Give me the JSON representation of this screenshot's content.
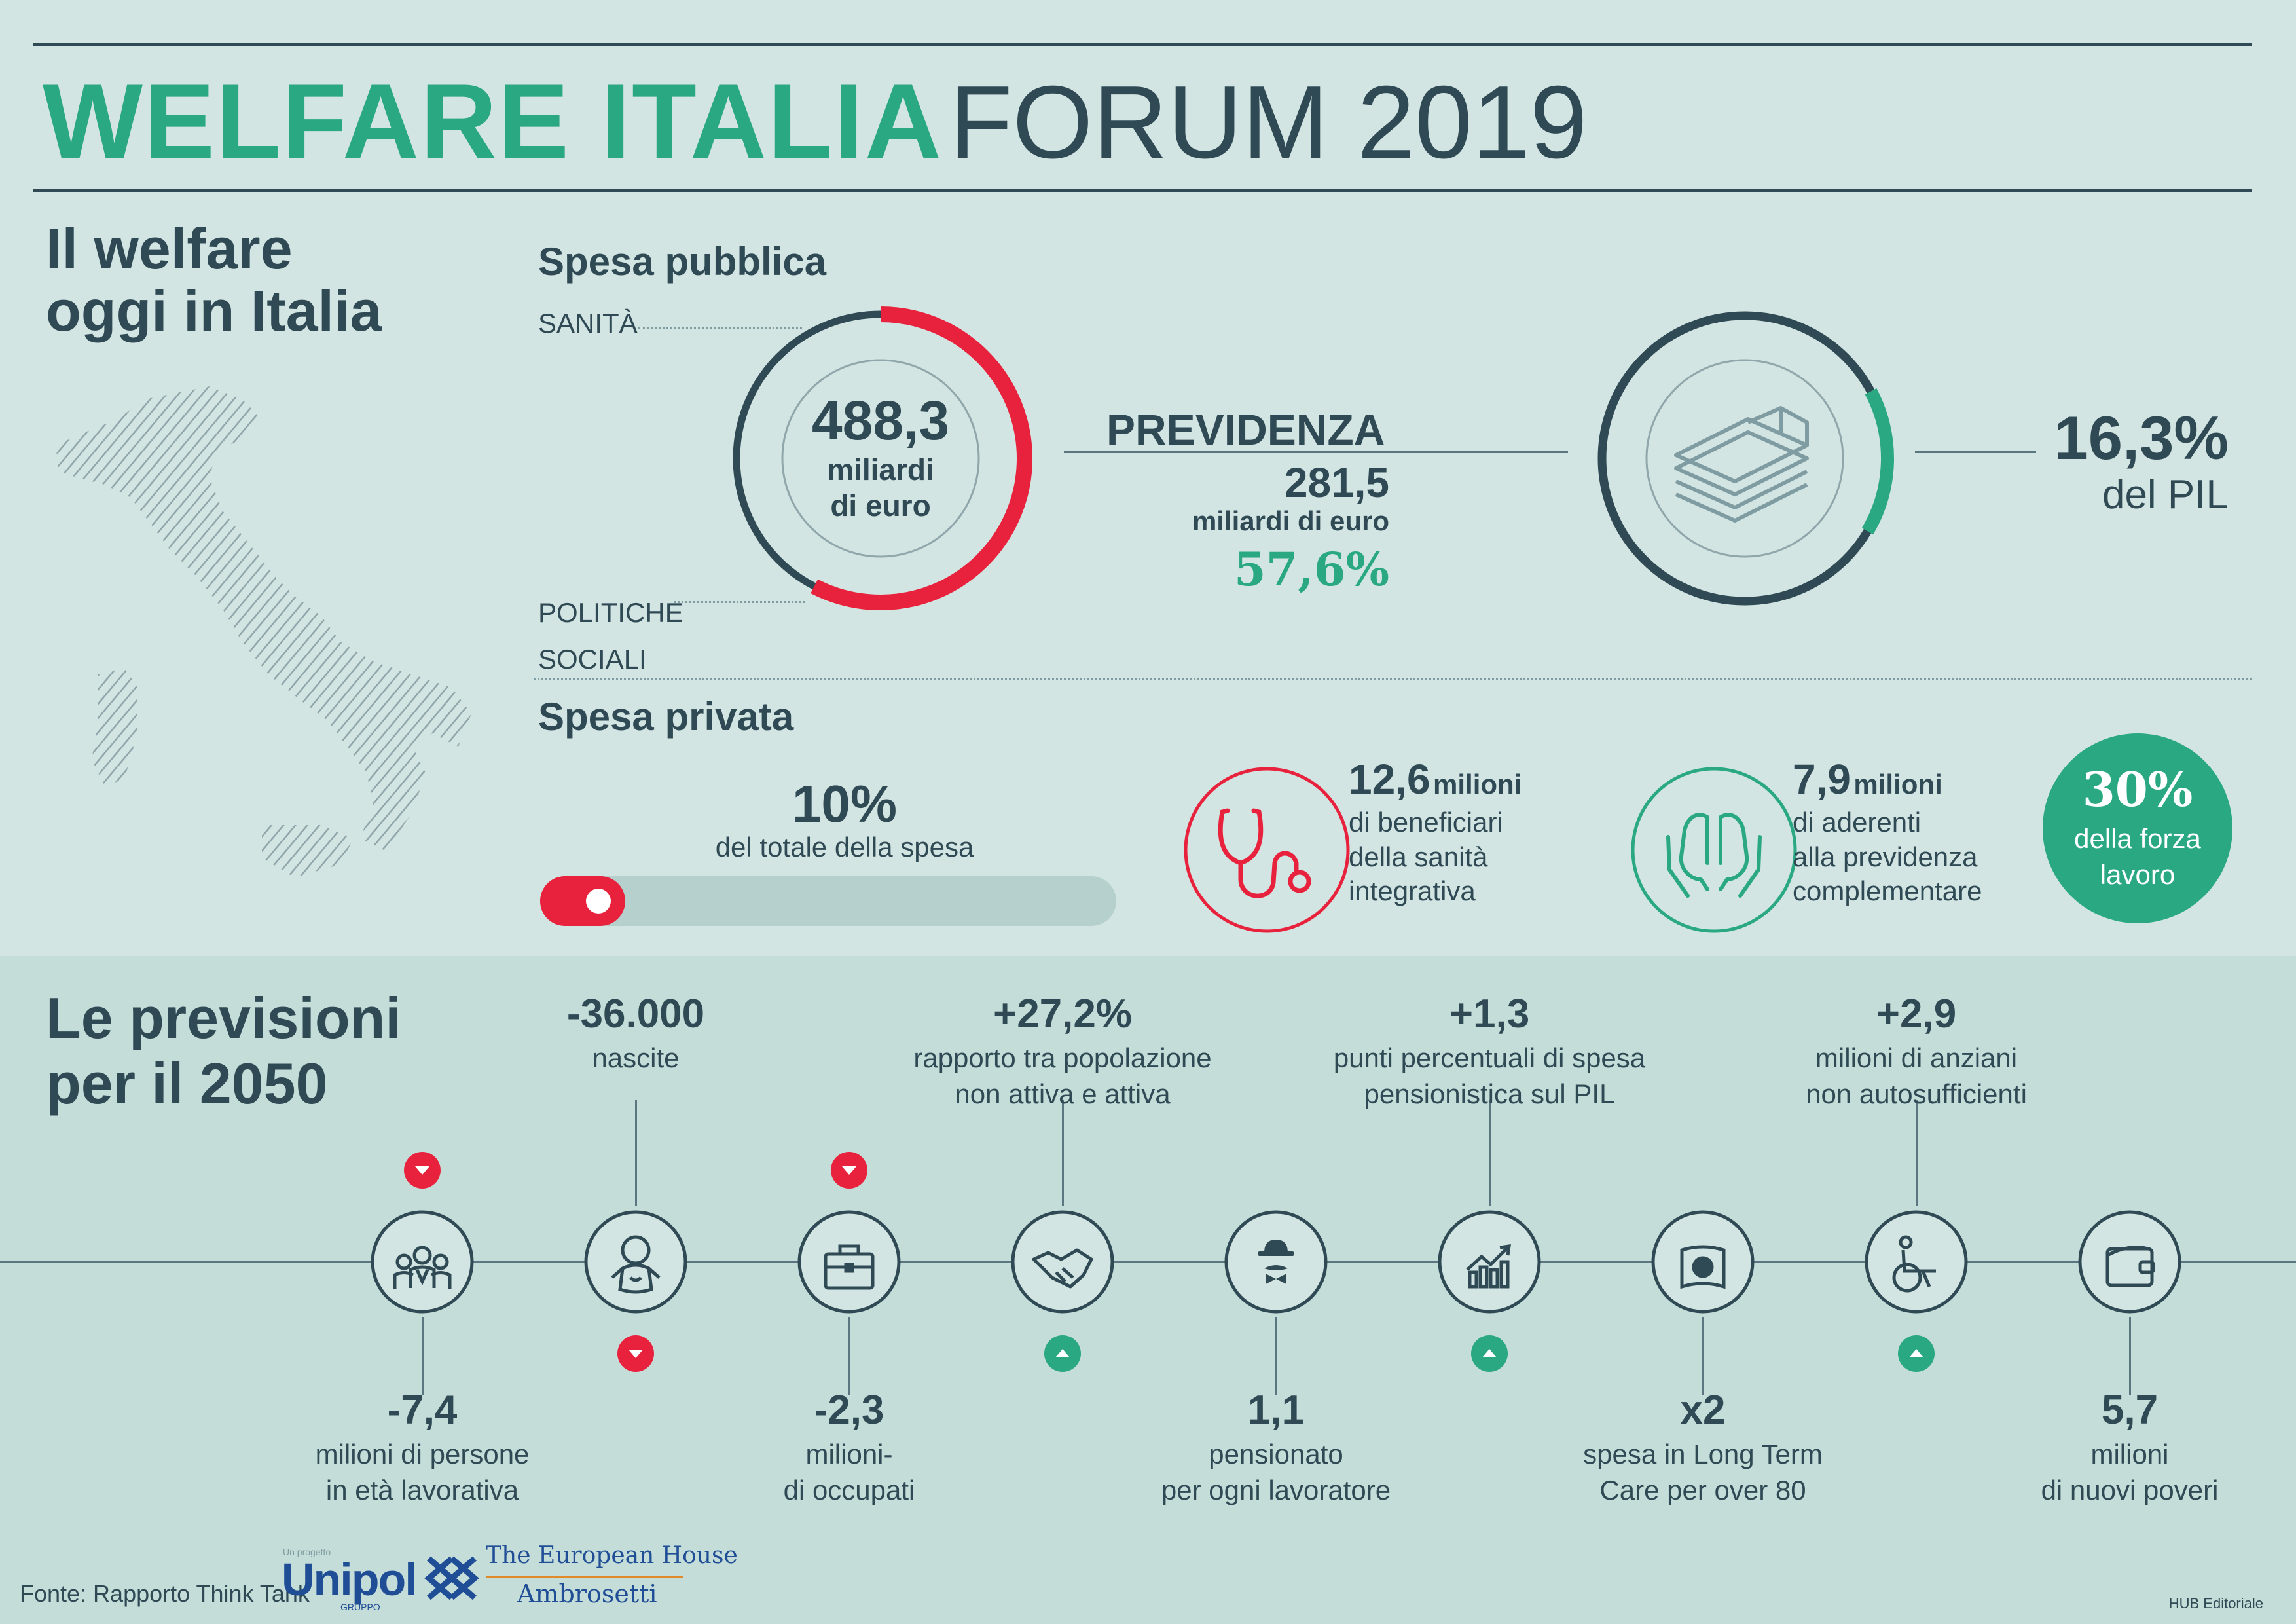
{
  "header": {
    "title_bold": "WELFARE ITALIA",
    "title_light": "FORUM 2019"
  },
  "section_today": {
    "heading_line1": "Il welfare",
    "heading_line2": "oggi in Italia",
    "map_icon": "italy-map-icon"
  },
  "public_spending": {
    "title": "Spesa pubblica",
    "label_health": "SANITÀ",
    "label_social_line1": "POLITICHE",
    "label_social_line2": "SOCIALI",
    "total_value": "488,3",
    "total_unit_line1": "miliardi",
    "total_unit_line2": "di euro",
    "pension_title": "PREVIDENZA",
    "pension_value": "281,5",
    "pension_unit": "miliardi di euro",
    "pension_share": "57,6%",
    "pension_share_fraction": 0.576,
    "gdp_value": "16,3%",
    "gdp_label": "del PIL",
    "gdp_fraction": 0.163,
    "money_icon": "banknotes-icon"
  },
  "private_spending": {
    "title": "Spesa privata",
    "share_value": "10%",
    "share_label": "del totale della spesa",
    "share_fraction": 0.1,
    "health_value": "12,6",
    "health_value_unit": "milioni",
    "health_label_line1": "di beneficiari",
    "health_label_line2": "della sanità",
    "health_label_line3": "integrativa",
    "health_icon": "stethoscope-icon",
    "pension_value": "7,9",
    "pension_value_unit": "milioni",
    "pension_label_line1": "di aderenti",
    "pension_label_line2": "alla previdenza",
    "pension_label_line3": "complementare",
    "pension_icon": "hands-icon",
    "workforce_value": "30%",
    "workforce_label_line1": "della forza",
    "workforce_label_line2": "lavoro"
  },
  "section_2050": {
    "heading_line1": "Le previsioni",
    "heading_line2": "per il 2050",
    "items": [
      {
        "icon": "people-icon",
        "value": "-7,4",
        "label1": "milioni di persone",
        "label2": "in età lavorativa",
        "trend": "down",
        "color": "#e8223d"
      },
      {
        "icon": "baby-icon",
        "value": "-36.000",
        "label1": "nascite",
        "label2": "",
        "trend": "down",
        "color": "#e8223d"
      },
      {
        "icon": "briefcase-icon",
        "value": "-2,3",
        "label1": "milioni-",
        "label2": "di occupati",
        "trend": "down",
        "color": "#e8223d"
      },
      {
        "icon": "handshake-icon",
        "value": "+27,2%",
        "label1": "rapporto tra popolazione",
        "label2": "non attiva e attiva",
        "trend": "up",
        "color": "#2aa882"
      },
      {
        "icon": "retiree-icon",
        "value": "1,1",
        "label1": "pensionato",
        "label2": "per ogni lavoratore",
        "trend": "none",
        "color": ""
      },
      {
        "icon": "chart-up-icon",
        "value": "+1,3",
        "label1": "punti percentuali di spesa",
        "label2": "pensionistica sul PIL",
        "trend": "up",
        "color": "#2aa882"
      },
      {
        "icon": "wallet-cash-icon",
        "value": "x2",
        "label1": "spesa in Long Term",
        "label2": "Care per over 80",
        "trend": "none",
        "color": ""
      },
      {
        "icon": "wheelchair-icon",
        "value": "+2,9",
        "label1": "milioni di anziani",
        "label2": "non autosufficienti",
        "trend": "up",
        "color": "#2aa882"
      },
      {
        "icon": "wallet-icon",
        "value": "5,7",
        "label1": "milioni",
        "label2": "di nuovi poveri",
        "trend": "none",
        "color": ""
      }
    ]
  },
  "footer": {
    "source": "Fonte: Rapporto Think Tank",
    "unipol_small": "Un progetto",
    "unipol_name": "Unipol",
    "unipol_sub": "GRUPPO",
    "teha_line1": "The European House",
    "teha_line2": "Ambrosetti",
    "credit": "HUB Editoriale"
  },
  "colors": {
    "green": "#2aa882",
    "red": "#e8223d",
    "dark": "#2f4a55",
    "bg_top": "#d3e5e2",
    "bg_bottom": "#c5ddd9"
  }
}
